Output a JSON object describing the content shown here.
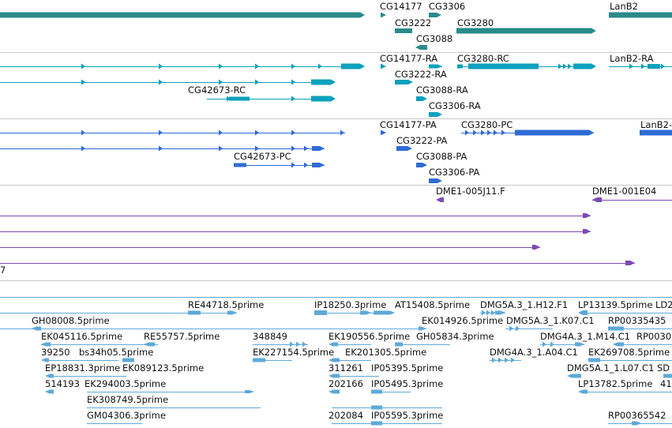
{
  "colors": {
    "genes": "#2a8a8a",
    "transcripts": "#0aa0bc",
    "proteins": "#2f6bd4",
    "clones": "#7b4bb3",
    "ests": "#5ea9d8",
    "divider": "#c8c8c8"
  },
  "tracks": {
    "genes": {
      "labels": [
        "CG14177",
        "CG3306",
        "CG3222",
        "CG3280",
        "CG3088",
        "LanB2"
      ]
    },
    "transcripts": {
      "labels": [
        "CG14177-RA",
        "CG3280-RC",
        "LanB2-RA",
        "CG3222-RA",
        "CG42673-RC",
        "CG3088-RA",
        "CG3306-RA"
      ]
    },
    "proteins": {
      "labels": [
        "CG14177-PA",
        "CG3280-PC",
        "LanB2-",
        "CG3222-PA",
        "CG42673-PC",
        "CG3088-PA",
        "CG3306-PA"
      ]
    },
    "clones": {
      "labels": [
        "DME1-005J11.F",
        "DME1-001E04",
        "7"
      ]
    },
    "ests": {
      "labels": [
        "RE44718.5prime",
        "IP18250.3prime",
        "AT15408.5prime",
        "DMG5A.3_1.H12.F1",
        "LP13139.5prime",
        "LD2",
        "GH08008.5prime",
        "EK014926.5prime",
        "DMG5A.3_1.K07.C1",
        "RP00335435",
        "EK045116.5prime",
        "RE55757.5prime",
        "348849",
        "EK190556.5prime",
        "GH05834.3prime",
        "DMG4A.3_1.M14.C1",
        "RP0030",
        "39250",
        "bs34h05.5prime",
        "EK227154.5prime",
        "EK201305.5prime",
        "DMG4A.3_1.A04.C1",
        "EK269708.5prime",
        "EP18831.3prime",
        "EK089123.5prime",
        "311261",
        "IP05395.5prime",
        "DMG5A.1_1.L07.C1",
        "SD",
        "514193",
        "EK294003.5prime",
        "202166",
        "IP05495.3prime",
        "LP13782.5prime",
        "41",
        "EK308749.5prime",
        "GM04306.3prime",
        "202084",
        "IP05595.3prime",
        "RP00365542"
      ]
    }
  }
}
